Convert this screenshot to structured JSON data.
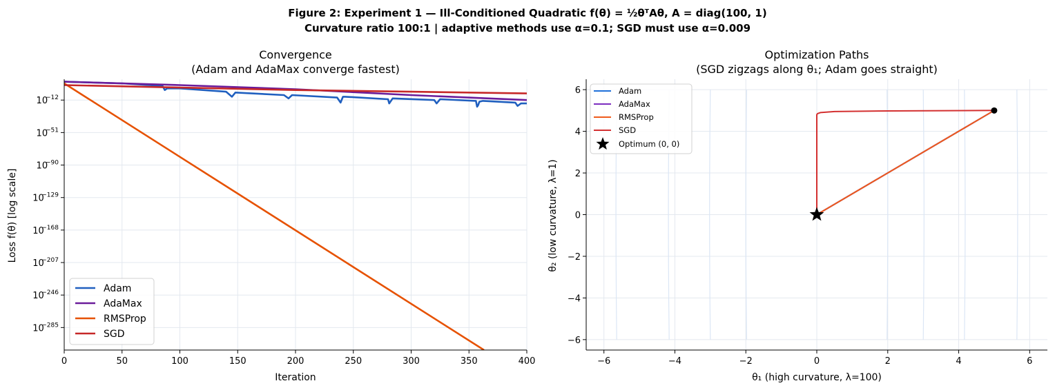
{
  "figure": {
    "suptitle_line1": "Figure 2: Experiment 1 — Ill-Conditioned Quadratic  f(θ) = ½θᵀAθ,  A = diag(100, 1)",
    "suptitle_line2": "Curvature ratio 100:1  |  adaptive methods use α=0.1;  SGD must use α=0.009"
  },
  "colors": {
    "adam": "#1f5fbf",
    "adamax": "#6a1b9a",
    "rmsprop": "#e65100",
    "sgd": "#c62828",
    "adam_path": "#1e6fd9",
    "adamax_path": "#7b2cbf",
    "rmsprop_path": "#ef5a1a",
    "sgd_path": "#d32f2f",
    "grid": "#e3e8ef",
    "contour": "#dbe6f5"
  },
  "chart_data": [
    {
      "type": "line",
      "title_line1": "Convergence",
      "title_line2": "(Adam and AdaMax converge fastest)",
      "xlabel": "Iteration",
      "ylabel_prefix": "Loss  f(θ)  [log scale]",
      "xlim": [
        0,
        400
      ],
      "x_ticks": [
        0,
        50,
        100,
        150,
        200,
        250,
        300,
        350,
        400
      ],
      "y_scale": "log",
      "ylim_log10": [
        -312,
        13
      ],
      "y_ticks_log10": [
        -12,
        -51,
        -90,
        -129,
        -168,
        -207,
        -246,
        -285
      ],
      "grid": true,
      "legend_position": "lower-left",
      "series": [
        {
          "name": "Adam",
          "color_key": "adam",
          "x": [
            0,
            50,
            85,
            87,
            89,
            100,
            140,
            145,
            148,
            190,
            194,
            197,
            236,
            239,
            241,
            243,
            280,
            281,
            284,
            320,
            322,
            325,
            356,
            357,
            358,
            359,
            362,
            390,
            392,
            395,
            400
          ],
          "y_log10": [
            10,
            8,
            5,
            0,
            2,
            2,
            -2,
            -8,
            -3,
            -6,
            -10,
            -6,
            -9,
            -15,
            -8,
            -8,
            -11,
            -16,
            -10,
            -12,
            -16,
            -11,
            -13,
            -20,
            -18,
            -14,
            -13,
            -15,
            -19,
            -16,
            -16
          ]
        },
        {
          "name": "AdaMax",
          "color_key": "adamax",
          "x": [
            0,
            100,
            200,
            300,
            400
          ],
          "y_log10": [
            10,
            6,
            1,
            -6,
            -12
          ]
        },
        {
          "name": "RMSProp",
          "color_key": "rmsprop",
          "x": [
            0,
            363
          ],
          "y_log10": [
            8,
            -312
          ]
        },
        {
          "name": "SGD",
          "color_key": "sgd",
          "x": [
            0,
            100,
            200,
            300,
            400
          ],
          "y_log10": [
            6,
            3,
            0,
            -2,
            -4
          ]
        }
      ]
    },
    {
      "type": "line",
      "title_line1": "Optimization Paths",
      "title_line2": "(SGD zigzags along θ₁; Adam goes straight)",
      "xlabel": "θ₁  (high curvature, λ=100)",
      "ylabel": "θ₂  (low curvature, λ=1)",
      "xlim": [
        -6.5,
        6.5
      ],
      "ylim": [
        -6.5,
        6.5
      ],
      "x_ticks": [
        -6,
        -4,
        -2,
        0,
        2,
        4,
        6
      ],
      "y_ticks": [
        -6,
        -4,
        -2,
        0,
        2,
        4,
        6
      ],
      "tick_minus": "−",
      "grid": true,
      "legend_position": "upper-left",
      "start_point": [
        5,
        5
      ],
      "contour_levels_x": [
        -5.64,
        -4.16,
        -3.0,
        -1.98,
        1.98,
        3.0,
        4.16,
        5.64
      ],
      "series": [
        {
          "name": "Adam",
          "color_key": "adam_path",
          "x": [
            5,
            0
          ],
          "y": [
            5,
            0
          ]
        },
        {
          "name": "AdaMax",
          "color_key": "adamax_path",
          "x": [
            5,
            0
          ],
          "y": [
            5,
            0
          ]
        },
        {
          "name": "RMSProp",
          "color_key": "rmsprop_path",
          "x": [
            5,
            0
          ],
          "y": [
            5,
            0
          ]
        },
        {
          "name": "SGD",
          "color_key": "sgd_path",
          "x": [
            5,
            2.0,
            0.5,
            0.1,
            0.02,
            0,
            0
          ],
          "y": [
            5,
            4.98,
            4.95,
            4.9,
            4.85,
            4.8,
            0
          ]
        }
      ],
      "optimum": {
        "name": "Optimum (0, 0)",
        "x": 0,
        "y": 0
      }
    }
  ]
}
